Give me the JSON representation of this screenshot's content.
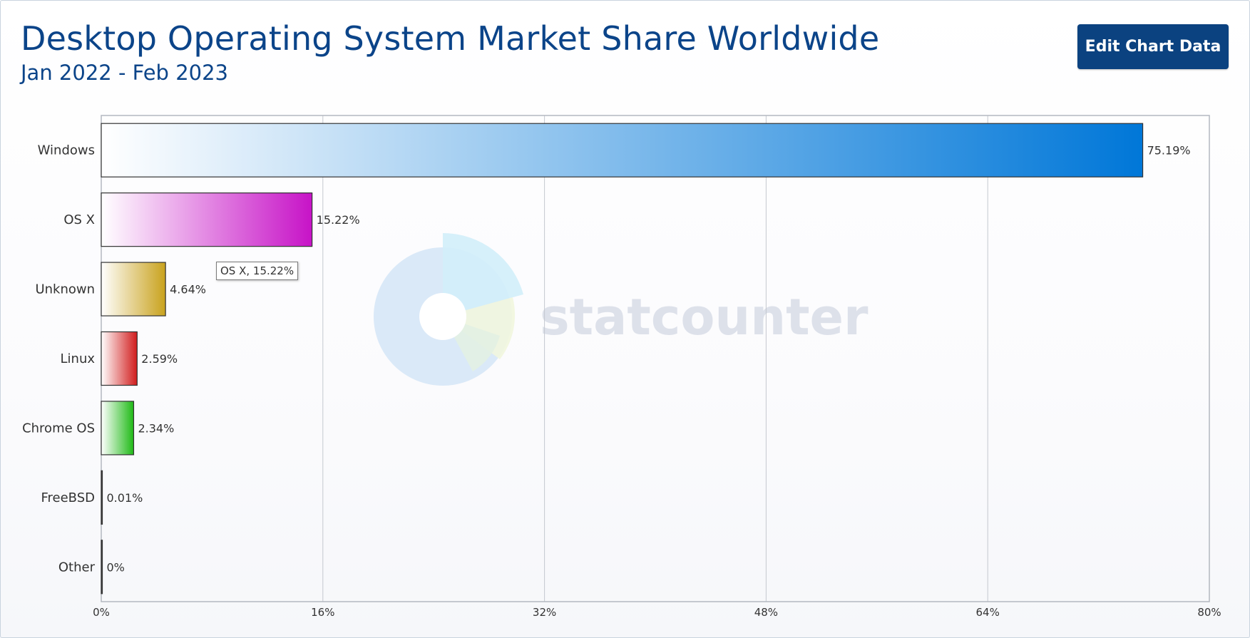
{
  "header": {
    "title": "Desktop Operating System Market Share Worldwide",
    "subtitle": "Jan 2022 - Feb 2023",
    "edit_button_label": "Edit Chart Data"
  },
  "watermark": {
    "text": "statcounter"
  },
  "tooltip": {
    "text": "OS X, 15.22%"
  },
  "chart_data": {
    "type": "bar",
    "orientation": "horizontal",
    "categories": [
      "Windows",
      "OS X",
      "Unknown",
      "Linux",
      "Chrome OS",
      "FreeBSD",
      "Other"
    ],
    "values": [
      75.19,
      15.22,
      4.64,
      2.59,
      2.34,
      0.01,
      0
    ],
    "value_labels": [
      "75.19%",
      "15.22%",
      "4.64%",
      "2.59%",
      "2.34%",
      "0.01%",
      "0%"
    ],
    "colors": [
      "#0077d8",
      "#c713c7",
      "#c9a21d",
      "#d11b1b",
      "#1fba16",
      "#333333",
      "#333333"
    ],
    "xlim": [
      0,
      80
    ],
    "xticks": [
      0,
      16,
      32,
      48,
      64,
      80
    ],
    "xtick_labels": [
      "0%",
      "16%",
      "32%",
      "48%",
      "64%",
      "80%"
    ],
    "grid": true,
    "title": "Desktop Operating System Market Share Worldwide",
    "subtitle": "Jan 2022 - Feb 2023"
  }
}
